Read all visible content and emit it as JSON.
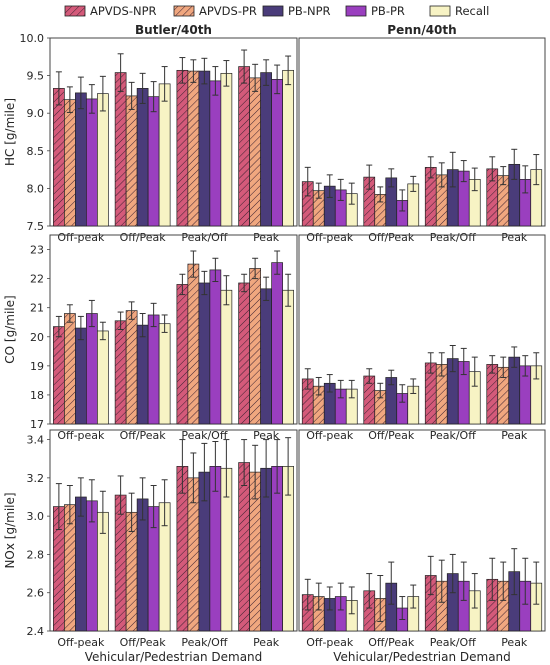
{
  "colors": {
    "APVDS-NPR": "#d45a7a",
    "APVDS-PR": "#f0a77f",
    "PB-NPR": "#4a3c7a",
    "PB-PR": "#9a3fbf",
    "Recall": "#f7f3c4"
  },
  "legend": [
    {
      "name": "APVDS-NPR",
      "hatch": true
    },
    {
      "name": "APVDS-PR",
      "hatch": true
    },
    {
      "name": "PB-NPR",
      "hatch": false
    },
    {
      "name": "PB-PR",
      "hatch": false
    },
    {
      "name": "Recall",
      "hatch": false
    }
  ],
  "chart_data": [
    {
      "type": "bar",
      "row": 0,
      "col": 0,
      "title": "Butler/40th",
      "ylabel": "HC [g/mile]",
      "xlabel": "",
      "ylim": [
        7.5,
        10.0
      ],
      "yticks": [
        7.5,
        8.0,
        8.5,
        9.0,
        9.5,
        10.0
      ],
      "tick_decimals": 1,
      "categories": [
        "Off-peak",
        "Off/Peak",
        "Peak/Off",
        "Peak"
      ],
      "series": [
        {
          "name": "APVDS-NPR",
          "values": [
            9.33,
            9.54,
            9.57,
            9.62
          ],
          "err": [
            0.22,
            0.25,
            0.17,
            0.22
          ]
        },
        {
          "name": "APVDS-PR",
          "values": [
            9.18,
            9.23,
            9.56,
            9.47
          ],
          "err": [
            0.17,
            0.18,
            0.15,
            0.18
          ]
        },
        {
          "name": "PB-NPR",
          "values": [
            9.27,
            9.33,
            9.56,
            9.54
          ],
          "err": [
            0.21,
            0.2,
            0.17,
            0.17
          ]
        },
        {
          "name": "PB-PR",
          "values": [
            9.19,
            9.22,
            9.43,
            9.45
          ],
          "err": [
            0.19,
            0.2,
            0.19,
            0.19
          ]
        },
        {
          "name": "Recall",
          "values": [
            9.26,
            9.39,
            9.53,
            9.57
          ],
          "err": [
            0.23,
            0.23,
            0.17,
            0.19
          ]
        }
      ]
    },
    {
      "type": "bar",
      "row": 0,
      "col": 1,
      "title": "Penn/40th",
      "ylabel": "",
      "xlabel": "",
      "ylim": [
        7.5,
        10.0
      ],
      "yticks": [],
      "tick_decimals": 1,
      "categories": [
        "Off-peak",
        "Off/Peak",
        "Peak/Off",
        "Peak"
      ],
      "series": [
        {
          "name": "APVDS-NPR",
          "values": [
            8.09,
            8.15,
            8.28,
            8.26
          ],
          "err": [
            0.19,
            0.16,
            0.14,
            0.16
          ]
        },
        {
          "name": "APVDS-PR",
          "values": [
            7.97,
            7.92,
            8.18,
            8.17
          ],
          "err": [
            0.1,
            0.1,
            0.16,
            0.12
          ]
        },
        {
          "name": "PB-NPR",
          "values": [
            8.03,
            8.14,
            8.25,
            8.32
          ],
          "err": [
            0.15,
            0.12,
            0.23,
            0.2
          ]
        },
        {
          "name": "PB-PR",
          "values": [
            7.98,
            7.84,
            8.23,
            8.12
          ],
          "err": [
            0.14,
            0.14,
            0.14,
            0.18
          ]
        },
        {
          "name": "Recall",
          "values": [
            7.93,
            8.06,
            8.12,
            8.25
          ],
          "err": [
            0.14,
            0.1,
            0.15,
            0.2
          ]
        }
      ]
    },
    {
      "type": "bar",
      "row": 1,
      "col": 0,
      "title": "",
      "ylabel": "CO [g/mile]",
      "xlabel": "",
      "ylim": [
        17,
        23.5
      ],
      "yticks": [
        17,
        18,
        19,
        20,
        21,
        22,
        23
      ],
      "tick_decimals": 0,
      "categories": [
        "Off-peak",
        "Off/Peak",
        "Peak/Off",
        "Peak"
      ],
      "series": [
        {
          "name": "APVDS-NPR",
          "values": [
            20.35,
            20.55,
            21.8,
            21.85
          ],
          "err": [
            0.35,
            0.3,
            0.35,
            0.3
          ]
        },
        {
          "name": "APVDS-PR",
          "values": [
            20.8,
            20.9,
            22.5,
            22.35
          ],
          "err": [
            0.3,
            0.3,
            0.45,
            0.35
          ]
        },
        {
          "name": "PB-NPR",
          "values": [
            20.3,
            20.4,
            21.85,
            21.65
          ],
          "err": [
            0.4,
            0.4,
            0.4,
            0.4
          ]
        },
        {
          "name": "PB-PR",
          "values": [
            20.8,
            20.75,
            22.3,
            22.55
          ],
          "err": [
            0.45,
            0.4,
            0.4,
            0.4
          ]
        },
        {
          "name": "Recall",
          "values": [
            20.2,
            20.45,
            21.6,
            21.6
          ],
          "err": [
            0.3,
            0.3,
            0.5,
            0.55
          ]
        }
      ]
    },
    {
      "type": "bar",
      "row": 1,
      "col": 1,
      "title": "",
      "ylabel": "",
      "xlabel": "",
      "ylim": [
        17,
        23.5
      ],
      "yticks": [],
      "tick_decimals": 0,
      "categories": [
        "Off-peak",
        "Off/Peak",
        "Peak/Off",
        "Peak"
      ],
      "series": [
        {
          "name": "APVDS-NPR",
          "values": [
            18.55,
            18.65,
            19.1,
            19.05
          ],
          "err": [
            0.35,
            0.25,
            0.35,
            0.3
          ]
        },
        {
          "name": "APVDS-PR",
          "values": [
            18.3,
            18.15,
            19.05,
            18.95
          ],
          "err": [
            0.3,
            0.25,
            0.4,
            0.35
          ]
        },
        {
          "name": "PB-NPR",
          "values": [
            18.4,
            18.6,
            19.25,
            19.3
          ],
          "err": [
            0.3,
            0.25,
            0.45,
            0.35
          ]
        },
        {
          "name": "PB-PR",
          "values": [
            18.2,
            18.05,
            19.15,
            19.0
          ],
          "err": [
            0.3,
            0.3,
            0.45,
            0.35
          ]
        },
        {
          "name": "Recall",
          "values": [
            18.2,
            18.3,
            18.8,
            19.0
          ],
          "err": [
            0.3,
            0.25,
            0.5,
            0.45
          ]
        }
      ]
    },
    {
      "type": "bar",
      "row": 2,
      "col": 0,
      "title": "",
      "ylabel": "NOx [g/mile]",
      "xlabel": "Vehicular/Pedestrian Demand",
      "ylim": [
        2.4,
        3.45
      ],
      "yticks": [
        2.4,
        2.6,
        2.8,
        3.0,
        3.2,
        3.4
      ],
      "tick_decimals": 1,
      "categories": [
        "Off-peak",
        "Off/Peak",
        "Peak/Off",
        "Peak"
      ],
      "series": [
        {
          "name": "APVDS-NPR",
          "values": [
            3.05,
            3.11,
            3.26,
            3.28
          ],
          "err": [
            0.12,
            0.1,
            0.14,
            0.12
          ]
        },
        {
          "name": "APVDS-PR",
          "values": [
            3.06,
            3.02,
            3.2,
            3.23
          ],
          "err": [
            0.1,
            0.1,
            0.13,
            0.14
          ]
        },
        {
          "name": "PB-NPR",
          "values": [
            3.1,
            3.09,
            3.23,
            3.25
          ],
          "err": [
            0.1,
            0.11,
            0.15,
            0.15
          ]
        },
        {
          "name": "PB-PR",
          "values": [
            3.08,
            3.05,
            3.26,
            3.26
          ],
          "err": [
            0.11,
            0.11,
            0.13,
            0.14
          ]
        },
        {
          "name": "Recall",
          "values": [
            3.02,
            3.07,
            3.25,
            3.26
          ],
          "err": [
            0.11,
            0.12,
            0.15,
            0.15
          ]
        }
      ]
    },
    {
      "type": "bar",
      "row": 2,
      "col": 1,
      "title": "",
      "ylabel": "",
      "xlabel": "Vehicular/Pedestrian Demand",
      "ylim": [
        2.4,
        3.45
      ],
      "yticks": [],
      "tick_decimals": 1,
      "categories": [
        "Off-peak",
        "Off/Peak",
        "Peak/Off",
        "Peak"
      ],
      "series": [
        {
          "name": "APVDS-NPR",
          "values": [
            2.59,
            2.61,
            2.69,
            2.67
          ],
          "err": [
            0.08,
            0.09,
            0.1,
            0.11
          ]
        },
        {
          "name": "APVDS-PR",
          "values": [
            2.58,
            2.57,
            2.66,
            2.66
          ],
          "err": [
            0.07,
            0.12,
            0.11,
            0.1
          ]
        },
        {
          "name": "PB-NPR",
          "values": [
            2.57,
            2.65,
            2.7,
            2.71
          ],
          "err": [
            0.06,
            0.11,
            0.1,
            0.12
          ]
        },
        {
          "name": "PB-PR",
          "values": [
            2.58,
            2.52,
            2.66,
            2.66
          ],
          "err": [
            0.07,
            0.06,
            0.1,
            0.12
          ]
        },
        {
          "name": "Recall",
          "values": [
            2.56,
            2.58,
            2.61,
            2.65
          ],
          "err": [
            0.07,
            0.06,
            0.09,
            0.11
          ]
        }
      ]
    }
  ]
}
